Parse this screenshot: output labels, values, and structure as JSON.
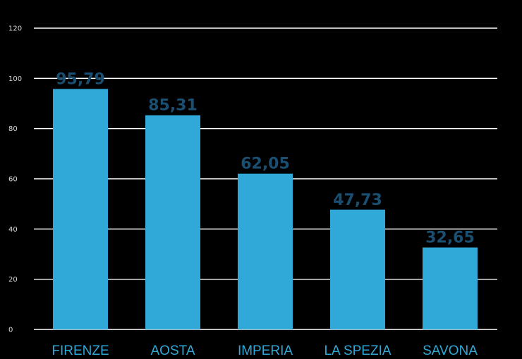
{
  "chart_data": {
    "type": "bar",
    "categories": [
      "FIRENZE",
      "AOSTA",
      "IMPERIA",
      "LA SPEZIA",
      "SAVONA"
    ],
    "values": [
      95.79,
      85.31,
      62.05,
      47.73,
      32.65
    ],
    "value_labels": [
      "95,79",
      "85,31",
      "62,05",
      "47,73",
      "32,65"
    ],
    "title": "",
    "xlabel": "",
    "ylabel": "",
    "ylim": [
      0,
      120
    ],
    "yticks": [
      "0",
      "20",
      "40",
      "60",
      "80",
      "100",
      "120"
    ],
    "grid": true,
    "legend": "none",
    "colors": {
      "bar": "#30a8d8",
      "category_label": "#2fa8d6",
      "value_label": "#1b4f72",
      "gridline": "#ffffff",
      "tick_label": "#d8d8d8",
      "background": "#000000"
    }
  }
}
